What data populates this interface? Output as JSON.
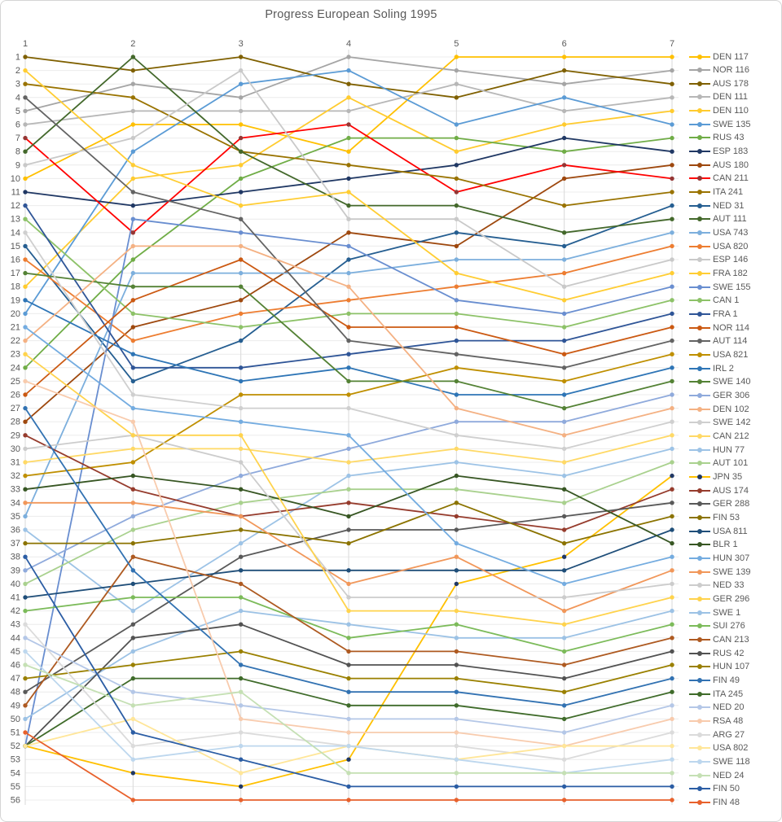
{
  "chart_data": {
    "type": "line",
    "title": "Progress European Soling 1995",
    "xlabel": "",
    "ylabel": "",
    "x_ticks": [
      1,
      2,
      3,
      4,
      5,
      6,
      7
    ],
    "y_min": 1,
    "y_max": 56,
    "y_axis_meaning": "position in regatta after each race (1 = leader)",
    "x_axis_position": "top",
    "legend_position": "right",
    "grid": true,
    "style": {
      "title_color": "#595959",
      "tick_label_color": "#595959",
      "legend_text_color": "#595959",
      "grid_h_color": "#ECECEC",
      "grid_v_color": "#D9D9D9",
      "background": "#FFFFFF",
      "line_width": 1.8,
      "marker_radius": 2.7
    },
    "series": [
      {
        "name": "DEN 117",
        "color": "#FFC000",
        "values": [
          10,
          6,
          6,
          8,
          1,
          1,
          1
        ]
      },
      {
        "name": "NOR 116",
        "color": "#A5A5A5",
        "values": [
          5,
          3,
          4,
          1,
          2,
          3,
          2
        ]
      },
      {
        "name": "AUS 178",
        "color": "#7F6000",
        "values": [
          1,
          2,
          1,
          3,
          4,
          2,
          3
        ]
      },
      {
        "name": "DEN 111",
        "color": "#B7B7B7",
        "values": [
          6,
          5,
          5,
          5,
          3,
          5,
          4
        ]
      },
      {
        "name": "DEN 110",
        "color": "#FFCB2F",
        "values": [
          18,
          10,
          9,
          4,
          8,
          6,
          5
        ]
      },
      {
        "name": "SWE 135",
        "color": "#5B9BD5",
        "values": [
          20,
          8,
          3,
          2,
          6,
          4,
          6
        ]
      },
      {
        "name": "RUS 43",
        "color": "#70AD47",
        "values": [
          24,
          16,
          10,
          7,
          7,
          8,
          7
        ]
      },
      {
        "name": "ESP 183",
        "color": "#203864",
        "values": [
          11,
          12,
          11,
          10,
          9,
          7,
          8
        ]
      },
      {
        "name": "AUS 180",
        "color": "#9E480E",
        "values": [
          28,
          21,
          19,
          14,
          15,
          10,
          9
        ]
      },
      {
        "name": "CAN 211",
        "color": "#FF0000",
        "marker": "#943634",
        "values": [
          7,
          14,
          7,
          6,
          11,
          9,
          10
        ]
      },
      {
        "name": "ITA 241",
        "color": "#997300",
        "values": [
          3,
          4,
          8,
          9,
          10,
          12,
          11
        ]
      },
      {
        "name": "NED 31",
        "color": "#255E91",
        "values": [
          15,
          25,
          22,
          16,
          14,
          15,
          12
        ]
      },
      {
        "name": "AUT 111",
        "color": "#43682B",
        "values": [
          8,
          1,
          8,
          12,
          12,
          14,
          13
        ]
      },
      {
        "name": "USA 743",
        "color": "#7CAFDD",
        "values": [
          35,
          17,
          17,
          17,
          16,
          16,
          14
        ]
      },
      {
        "name": "USA 820",
        "color": "#ED7D31",
        "values": [
          16,
          22,
          20,
          19,
          18,
          17,
          15
        ]
      },
      {
        "name": "ESP 146",
        "color": "#C9C9C9",
        "values": [
          9,
          7,
          2,
          13,
          13,
          18,
          16
        ]
      },
      {
        "name": "FRA 182",
        "color": "#FFCD33",
        "values": [
          2,
          9,
          12,
          11,
          17,
          19,
          17
        ]
      },
      {
        "name": "SWE 155",
        "color": "#698ED0",
        "values": [
          52,
          13,
          14,
          15,
          19,
          20,
          18
        ]
      },
      {
        "name": "CAN 1",
        "color": "#8DC268",
        "values": [
          13,
          20,
          21,
          20,
          20,
          21,
          19
        ]
      },
      {
        "name": "FRA 1",
        "color": "#2F5597",
        "values": [
          12,
          24,
          24,
          23,
          22,
          22,
          20
        ]
      },
      {
        "name": "NOR 114",
        "color": "#CB5912",
        "values": [
          26,
          19,
          16,
          21,
          21,
          23,
          21
        ]
      },
      {
        "name": "AUT 114",
        "color": "#636363",
        "values": [
          4,
          11,
          13,
          22,
          23,
          24,
          22
        ]
      },
      {
        "name": "USA 821",
        "color": "#BF8F00",
        "values": [
          32,
          31,
          26,
          26,
          24,
          25,
          23
        ]
      },
      {
        "name": "IRL 2",
        "color": "#2E75B6",
        "values": [
          19,
          23,
          25,
          24,
          26,
          26,
          24
        ]
      },
      {
        "name": "SWE 140",
        "color": "#548235",
        "values": [
          17,
          18,
          18,
          25,
          25,
          27,
          25
        ]
      },
      {
        "name": "GER 306",
        "color": "#8FAADC",
        "values": [
          39,
          35,
          32,
          30,
          28,
          28,
          26
        ]
      },
      {
        "name": "DEN 102",
        "color": "#F4B183",
        "values": [
          22,
          15,
          15,
          18,
          27,
          29,
          27
        ]
      },
      {
        "name": "SWE 142",
        "color": "#CFCFCF",
        "values": [
          14,
          26,
          27,
          27,
          29,
          30,
          28
        ]
      },
      {
        "name": "CAN 212",
        "color": "#FFD966",
        "values": [
          31,
          30,
          30,
          31,
          30,
          31,
          29
        ]
      },
      {
        "name": "HUN 77",
        "color": "#9DC3E6",
        "values": [
          36,
          42,
          37,
          32,
          31,
          32,
          30
        ]
      },
      {
        "name": "AUT 101",
        "color": "#A9D18E",
        "values": [
          40,
          36,
          34,
          33,
          33,
          34,
          31
        ]
      },
      {
        "name": "JPN 35",
        "color": "#FFC000",
        "marker": "#203864",
        "values": [
          52,
          54,
          55,
          53,
          40,
          38,
          32
        ]
      },
      {
        "name": "AUS 174",
        "color": "#963C2D",
        "values": [
          29,
          33,
          35,
          34,
          35,
          36,
          33
        ]
      },
      {
        "name": "GER 288",
        "color": "#595959",
        "values": [
          48,
          43,
          38,
          36,
          36,
          35,
          34
        ]
      },
      {
        "name": "FIN 53",
        "color": "#8B7300",
        "values": [
          37,
          37,
          36,
          37,
          34,
          37,
          35
        ]
      },
      {
        "name": "USA 811",
        "color": "#1F4E79",
        "values": [
          41,
          40,
          39,
          39,
          39,
          39,
          36
        ]
      },
      {
        "name": "BLR 1",
        "color": "#375623",
        "values": [
          33,
          32,
          33,
          35,
          32,
          33,
          37
        ]
      },
      {
        "name": "HUN 307",
        "color": "#74ACE0",
        "values": [
          21,
          27,
          28,
          29,
          37,
          40,
          38
        ]
      },
      {
        "name": "SWE 139",
        "color": "#F1975A",
        "values": [
          34,
          34,
          35,
          40,
          38,
          42,
          39
        ]
      },
      {
        "name": "NED 33",
        "color": "#CCCCCC",
        "values": [
          30,
          29,
          31,
          41,
          41,
          41,
          40
        ]
      },
      {
        "name": "GER 296",
        "color": "#FFD34D",
        "values": [
          23,
          29,
          29,
          42,
          42,
          43,
          41
        ]
      },
      {
        "name": "SWE 1",
        "color": "#9CC2E5",
        "values": [
          50,
          45,
          42,
          43,
          44,
          44,
          42
        ]
      },
      {
        "name": "SUI 276",
        "color": "#7CBB5A",
        "values": [
          42,
          41,
          41,
          44,
          43,
          45,
          43
        ]
      },
      {
        "name": "CAN 213",
        "color": "#AE5A21",
        "values": [
          49,
          38,
          40,
          45,
          45,
          46,
          44
        ]
      },
      {
        "name": "RUS 42",
        "color": "#525252",
        "values": [
          52,
          44,
          43,
          46,
          46,
          47,
          45
        ]
      },
      {
        "name": "HUN 107",
        "color": "#9A8000",
        "values": [
          47,
          46,
          45,
          47,
          47,
          48,
          46
        ]
      },
      {
        "name": "FIN 49",
        "color": "#3272B2",
        "values": [
          27,
          39,
          46,
          48,
          48,
          49,
          47
        ]
      },
      {
        "name": "ITA 245",
        "color": "#3F6B2A",
        "values": [
          52,
          47,
          47,
          49,
          49,
          50,
          48
        ]
      },
      {
        "name": "NED 20",
        "color": "#B4C7E7",
        "values": [
          44,
          48,
          49,
          50,
          50,
          51,
          49
        ]
      },
      {
        "name": "RSA 48",
        "color": "#F8CBAD",
        "values": [
          25,
          28,
          50,
          51,
          51,
          52,
          50
        ]
      },
      {
        "name": "ARG 27",
        "color": "#DBDBDB",
        "values": [
          43,
          52,
          51,
          52,
          52,
          53,
          51
        ]
      },
      {
        "name": "USA 802",
        "color": "#FFE699",
        "values": [
          52,
          50,
          54,
          52,
          53,
          52,
          52
        ]
      },
      {
        "name": "SWE 118",
        "color": "#BDD7EE",
        "values": [
          45,
          53,
          52,
          52,
          53,
          54,
          53
        ]
      },
      {
        "name": "NED 24",
        "color": "#C5E0B4",
        "values": [
          46,
          49,
          48,
          54,
          54,
          54,
          54
        ]
      },
      {
        "name": "FIN 50",
        "color": "#2B5DA4",
        "values": [
          38,
          51,
          53,
          55,
          55,
          55,
          55
        ]
      },
      {
        "name": "FIN 48",
        "color": "#E8612C",
        "values": [
          51,
          56,
          56,
          56,
          56,
          56,
          56
        ]
      }
    ]
  }
}
